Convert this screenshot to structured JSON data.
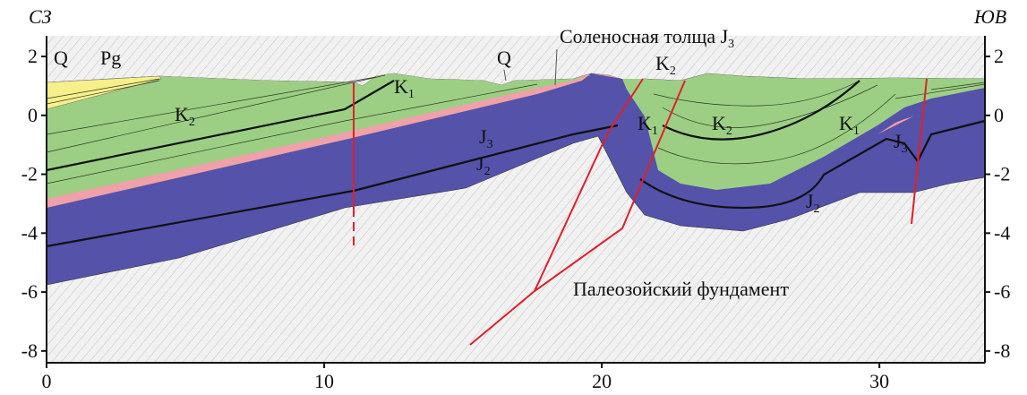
{
  "header": {
    "left": "СЗ",
    "right": "ЮВ"
  },
  "axes": {
    "xlim": [
      0,
      33.8
    ],
    "ylim": [
      -8.4,
      2.7
    ],
    "xticks": [
      0,
      10,
      20,
      30
    ],
    "yticks": [
      2,
      0,
      -2,
      -4,
      -6,
      -8
    ]
  },
  "labels": [
    {
      "text": "Q"
    },
    {
      "text": "Pg"
    },
    {
      "text": "K",
      "sub": "2"
    },
    {
      "text": "K",
      "sub": "1"
    },
    {
      "text": "J",
      "sub": "3"
    },
    {
      "text": "J",
      "sub": "2"
    },
    {
      "text": "Q"
    },
    {
      "text": "Соленосная толща J",
      "sub": "3"
    },
    {
      "text": "K",
      "sub": "2"
    },
    {
      "text": "K",
      "sub": "1"
    },
    {
      "text": "K",
      "sub": "2"
    },
    {
      "text": "K",
      "sub": "1"
    },
    {
      "text": "J",
      "sub": "3"
    },
    {
      "text": "J",
      "sub": "2"
    },
    {
      "text": "Палеозойский фундамент"
    }
  ]
}
